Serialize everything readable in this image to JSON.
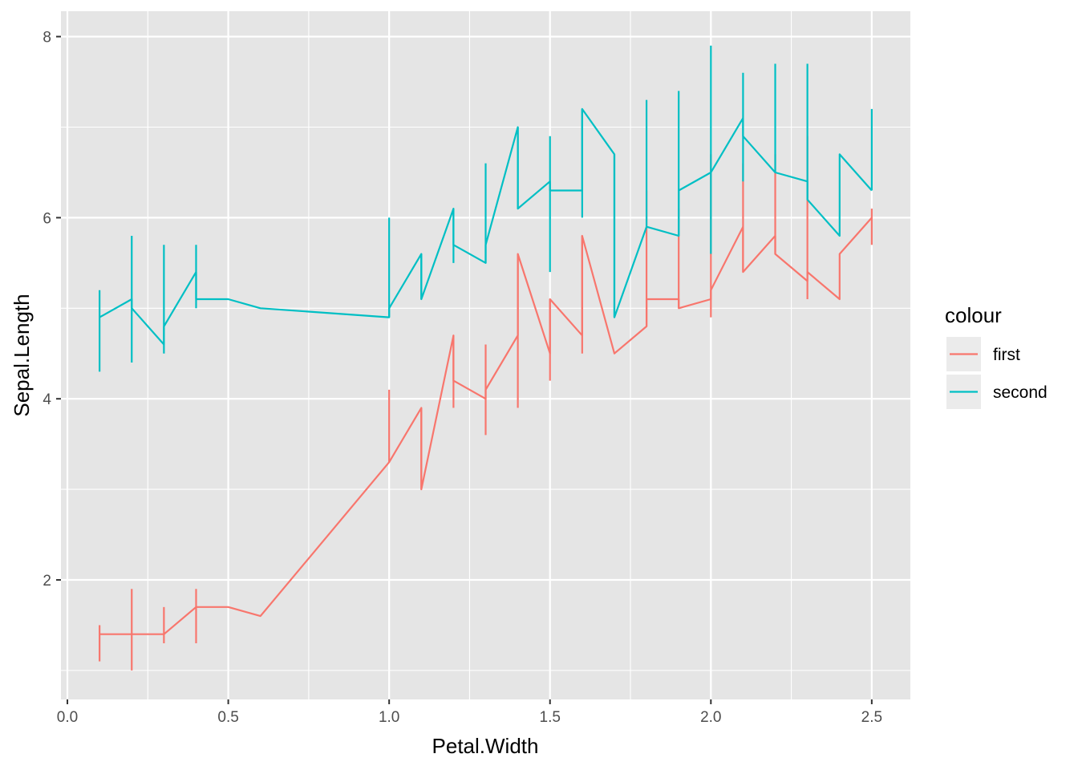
{
  "chart_data": {
    "type": "line",
    "xlabel": "Petal.Width",
    "ylabel": "Sepal.Length",
    "xlim": [
      -0.02,
      2.62
    ],
    "ylim": [
      0.68,
      8.28
    ],
    "x_ticks": [
      0.0,
      0.5,
      1.0,
      1.5,
      2.0,
      2.5
    ],
    "x_tick_labels": [
      "0.0",
      "0.5",
      "1.0",
      "1.5",
      "2.0",
      "2.5"
    ],
    "y_ticks": [
      2,
      4,
      6,
      8
    ],
    "y_tick_labels": [
      "2",
      "4",
      "6",
      "8"
    ],
    "grid": true,
    "legend": {
      "title": "colour",
      "position": "right"
    },
    "colors": {
      "panel": "#e5e5e5",
      "grid": "#ffffff"
    },
    "series": [
      {
        "name": "first",
        "color": "#f8766d",
        "line": [
          [
            0.1,
            1.4
          ],
          [
            0.2,
            1.4
          ],
          [
            0.3,
            1.4
          ],
          [
            0.4,
            1.7
          ],
          [
            0.5,
            1.7
          ],
          [
            0.6,
            1.6
          ],
          [
            1.0,
            3.3
          ],
          [
            1.1,
            3.9
          ],
          [
            1.1,
            3.0
          ],
          [
            1.2,
            4.7
          ],
          [
            1.2,
            4.2
          ],
          [
            1.3,
            4.0
          ],
          [
            1.3,
            4.1
          ],
          [
            1.4,
            4.7
          ],
          [
            1.4,
            5.6
          ],
          [
            1.5,
            4.5
          ],
          [
            1.5,
            5.1
          ],
          [
            1.6,
            4.7
          ],
          [
            1.6,
            5.8
          ],
          [
            1.7,
            4.5
          ],
          [
            1.8,
            4.8
          ],
          [
            1.8,
            5.1
          ],
          [
            1.9,
            5.1
          ],
          [
            1.9,
            5.0
          ],
          [
            2.0,
            5.1
          ],
          [
            2.0,
            5.2
          ],
          [
            2.1,
            5.9
          ],
          [
            2.1,
            5.4
          ],
          [
            2.2,
            5.8
          ],
          [
            2.2,
            5.6
          ],
          [
            2.3,
            5.3
          ],
          [
            2.3,
            5.4
          ],
          [
            2.4,
            5.1
          ],
          [
            2.4,
            5.6
          ],
          [
            2.5,
            6.0
          ]
        ],
        "ranges": [
          {
            "x": 0.1,
            "ymin": 1.1,
            "ymax": 1.5
          },
          {
            "x": 0.2,
            "ymin": 1.0,
            "ymax": 1.9
          },
          {
            "x": 0.3,
            "ymin": 1.3,
            "ymax": 1.7
          },
          {
            "x": 0.4,
            "ymin": 1.3,
            "ymax": 1.9
          },
          {
            "x": 1.0,
            "ymin": 3.3,
            "ymax": 4.1
          },
          {
            "x": 1.1,
            "ymin": 3.0,
            "ymax": 3.9
          },
          {
            "x": 1.2,
            "ymin": 3.9,
            "ymax": 4.7
          },
          {
            "x": 1.3,
            "ymin": 3.6,
            "ymax": 4.6
          },
          {
            "x": 1.4,
            "ymin": 3.9,
            "ymax": 5.6
          },
          {
            "x": 1.5,
            "ymin": 4.2,
            "ymax": 5.1
          },
          {
            "x": 1.6,
            "ymin": 4.5,
            "ymax": 5.8
          },
          {
            "x": 1.8,
            "ymin": 4.8,
            "ymax": 6.3
          },
          {
            "x": 1.9,
            "ymin": 5.0,
            "ymax": 6.1
          },
          {
            "x": 2.0,
            "ymin": 4.9,
            "ymax": 6.7
          },
          {
            "x": 2.1,
            "ymin": 5.4,
            "ymax": 6.6
          },
          {
            "x": 2.2,
            "ymin": 5.6,
            "ymax": 6.7
          },
          {
            "x": 2.3,
            "ymin": 5.1,
            "ymax": 6.9
          },
          {
            "x": 2.5,
            "ymin": 5.7,
            "ymax": 6.1
          }
        ]
      },
      {
        "name": "second",
        "color": "#00bfc4",
        "line": [
          [
            0.1,
            4.9
          ],
          [
            0.2,
            5.1
          ],
          [
            0.2,
            5.0
          ],
          [
            0.3,
            4.6
          ],
          [
            0.3,
            4.8
          ],
          [
            0.4,
            5.4
          ],
          [
            0.4,
            5.1
          ],
          [
            0.5,
            5.1
          ],
          [
            0.6,
            5.0
          ],
          [
            1.0,
            4.9
          ],
          [
            1.0,
            5.0
          ],
          [
            1.1,
            5.6
          ],
          [
            1.1,
            5.1
          ],
          [
            1.2,
            6.1
          ],
          [
            1.2,
            5.7
          ],
          [
            1.3,
            5.5
          ],
          [
            1.3,
            5.7
          ],
          [
            1.4,
            7.0
          ],
          [
            1.4,
            6.1
          ],
          [
            1.5,
            6.4
          ],
          [
            1.5,
            6.3
          ],
          [
            1.6,
            6.3
          ],
          [
            1.6,
            7.2
          ],
          [
            1.7,
            6.7
          ],
          [
            1.7,
            4.9
          ],
          [
            1.8,
            5.9
          ],
          [
            1.9,
            5.8
          ],
          [
            1.9,
            6.3
          ],
          [
            2.0,
            6.5
          ],
          [
            2.1,
            7.1
          ],
          [
            2.1,
            6.9
          ],
          [
            2.2,
            6.5
          ],
          [
            2.3,
            6.4
          ],
          [
            2.3,
            6.2
          ],
          [
            2.4,
            5.8
          ],
          [
            2.4,
            6.7
          ],
          [
            2.5,
            6.3
          ]
        ],
        "ranges": [
          {
            "x": 0.1,
            "ymin": 4.3,
            "ymax": 5.2
          },
          {
            "x": 0.2,
            "ymin": 4.4,
            "ymax": 5.8
          },
          {
            "x": 0.3,
            "ymin": 4.5,
            "ymax": 5.7
          },
          {
            "x": 0.4,
            "ymin": 5.0,
            "ymax": 5.7
          },
          {
            "x": 1.0,
            "ymin": 4.9,
            "ymax": 6.0
          },
          {
            "x": 1.1,
            "ymin": 5.1,
            "ymax": 5.6
          },
          {
            "x": 1.2,
            "ymin": 5.5,
            "ymax": 6.1
          },
          {
            "x": 1.3,
            "ymin": 5.5,
            "ymax": 6.6
          },
          {
            "x": 1.4,
            "ymin": 6.1,
            "ymax": 7.0
          },
          {
            "x": 1.5,
            "ymin": 5.4,
            "ymax": 6.9
          },
          {
            "x": 1.6,
            "ymin": 6.0,
            "ymax": 7.2
          },
          {
            "x": 1.7,
            "ymin": 4.9,
            "ymax": 6.7
          },
          {
            "x": 1.8,
            "ymin": 5.9,
            "ymax": 7.3
          },
          {
            "x": 1.9,
            "ymin": 5.8,
            "ymax": 7.4
          },
          {
            "x": 2.0,
            "ymin": 5.6,
            "ymax": 7.9
          },
          {
            "x": 2.1,
            "ymin": 6.4,
            "ymax": 7.6
          },
          {
            "x": 2.2,
            "ymin": 6.5,
            "ymax": 7.7
          },
          {
            "x": 2.3,
            "ymin": 6.2,
            "ymax": 7.7
          },
          {
            "x": 2.5,
            "ymin": 6.3,
            "ymax": 7.2
          }
        ]
      }
    ]
  }
}
